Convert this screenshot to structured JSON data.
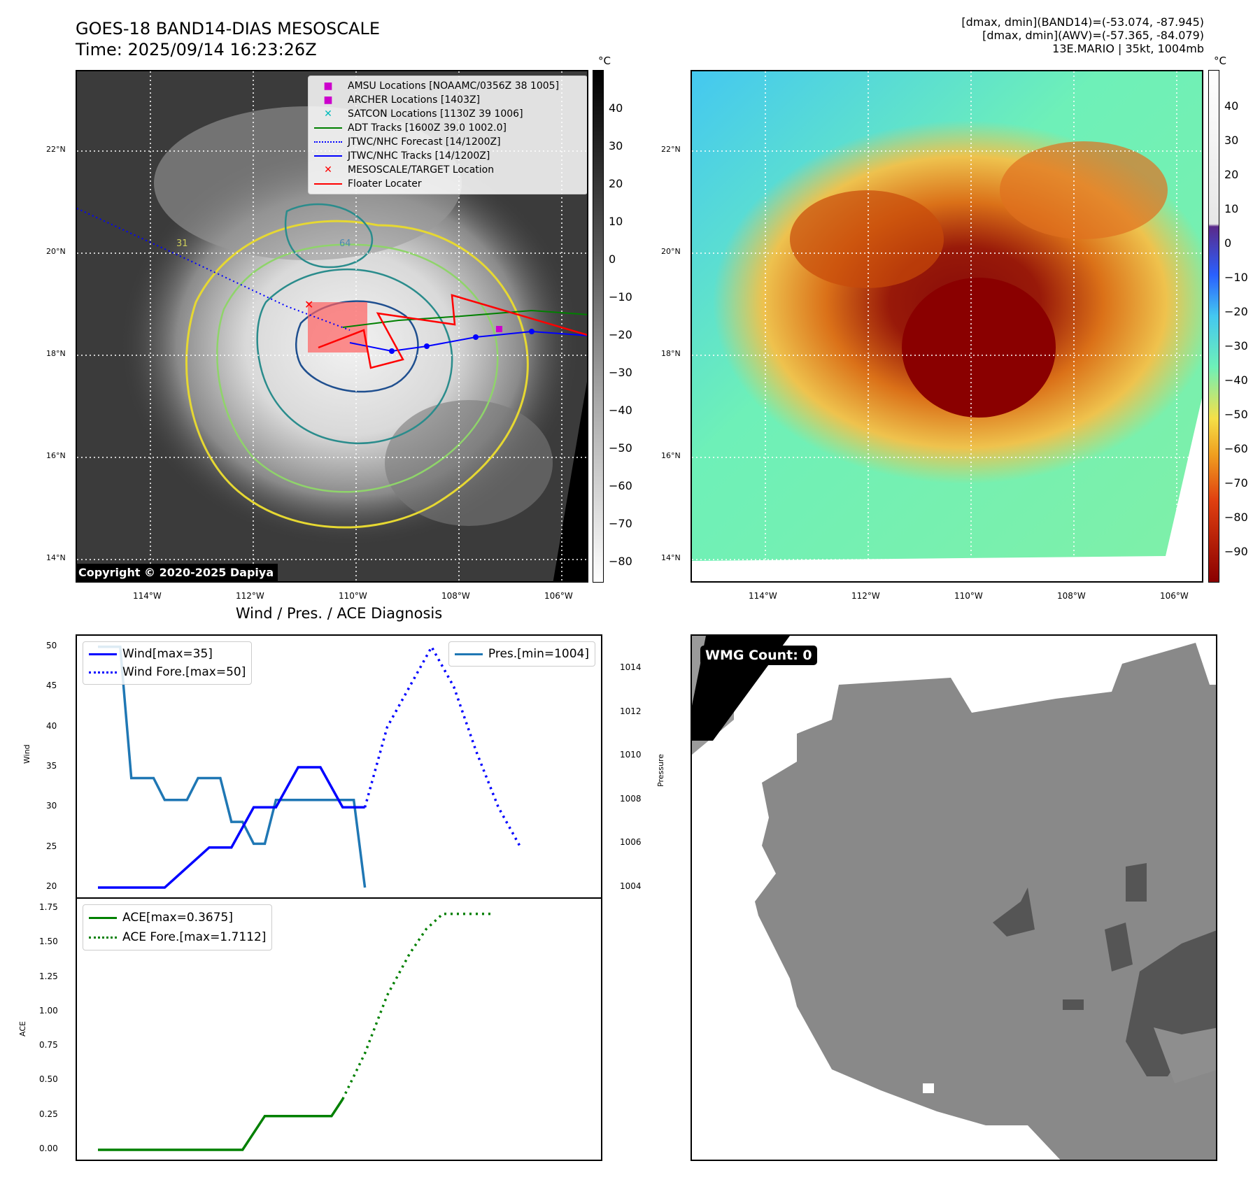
{
  "header": {
    "title_line1": "GOES-18 BAND14-DIAS MESOSCALE",
    "title_line2": "Time: 2025/09/14 16:23:26Z",
    "info_line1": "[dmax, dmin](BAND14)=(-53.074, -87.945)",
    "info_line2": "[dmax, dmin](AWV)=(-57.365, -84.079)",
    "info_line3": "13E.MARIO | 35kt, 1004mb"
  },
  "satellite_panel": {
    "copyright": "Copyright © 2020-2025 Dapiya",
    "colorbar_unit": "°C",
    "colorbar_ticks": [
      "40",
      "30",
      "20",
      "10",
      "0",
      "−10",
      "−20",
      "−30",
      "−40",
      "−50",
      "−60",
      "−70",
      "−80"
    ],
    "lat_ticks": [
      "22°N",
      "20°N",
      "18°N",
      "16°N",
      "14°N"
    ],
    "lon_ticks": [
      "114°W",
      "112°W",
      "110°W",
      "108°W",
      "106°W"
    ],
    "contour_labels": [
      "31",
      "64"
    ],
    "legend": [
      {
        "label": "AMSU Locations [NOAAMC/0356Z 38 1005]",
        "marker": "square",
        "color": "#cc00cc"
      },
      {
        "label": "ARCHER Locations [1403Z]",
        "marker": "square",
        "color": "#cc00cc"
      },
      {
        "label": "SATCON Locations [1130Z 39 1006]",
        "marker": "x",
        "color": "#00bbbb"
      },
      {
        "label": "ADT Tracks [1600Z 39.0 1002.0]",
        "marker": "line",
        "color": "#008000"
      },
      {
        "label": "JTWC/NHC Forecast [14/1200Z]",
        "marker": "dotted",
        "color": "#0000ff"
      },
      {
        "label": "JTWC/NHC Tracks [14/1200Z]",
        "marker": "line-dot",
        "color": "#0000ff"
      },
      {
        "label": "MESOSCALE/TARGET Location",
        "marker": "x",
        "color": "#ff0000"
      },
      {
        "label": "Floater Locater",
        "marker": "line",
        "color": "#ff0000"
      }
    ]
  },
  "awv_panel": {
    "colorbar_unit": "°C",
    "colorbar_ticks": [
      "40",
      "30",
      "20",
      "10",
      "0",
      "−10",
      "−20",
      "−30",
      "−40",
      "−50",
      "−60",
      "−70",
      "−80",
      "−90"
    ],
    "lat_ticks": [
      "22°N",
      "20°N",
      "18°N",
      "16°N",
      "14°N"
    ],
    "lon_ticks": [
      "114°W",
      "112°W",
      "110°W",
      "108°W",
      "106°W"
    ]
  },
  "wmg_panel": {
    "badge": "WMG Count: 0"
  },
  "chart_data": [
    {
      "type": "line",
      "title": "Wind / Pres. / ACE Diagnosis",
      "ylabel": "Wind",
      "ylabel_right": "Pressure",
      "ylim": [
        19.5,
        51.5
      ],
      "ylim_right": [
        1003.6,
        1015.3
      ],
      "y_ticks": [
        "50",
        "45",
        "40",
        "35",
        "30",
        "25",
        "20"
      ],
      "y_ticks_right": [
        "1014",
        "1012",
        "1010",
        "1008",
        "1006",
        "1004"
      ],
      "legend": [
        "Wind[max=35]",
        "Wind Fore.[max=50]",
        "Pres.[min=1004]"
      ],
      "series": [
        {
          "name": "Wind[max=35]",
          "color": "#0000ff",
          "style": "solid",
          "x": [
            0,
            6,
            10,
            12,
            14,
            16,
            18,
            20,
            22,
            24
          ],
          "values": [
            20,
            20,
            25,
            25,
            30,
            30,
            35,
            35,
            30,
            30
          ]
        },
        {
          "name": "Wind Fore.[max=50]",
          "color": "#0000ff",
          "style": "dotted",
          "x": [
            24,
            25,
            26,
            28,
            30,
            32,
            34,
            36,
            38
          ],
          "values": [
            30,
            35,
            40,
            45,
            50,
            45,
            37,
            30,
            25
          ]
        },
        {
          "name": "Pres.[min=1004]",
          "color": "#1f77b4",
          "style": "solid",
          "x": [
            0,
            2,
            3,
            5,
            6,
            8,
            9,
            11,
            12,
            13,
            14,
            15,
            16,
            17,
            18,
            20,
            22,
            23,
            24
          ],
          "values": [
            1015,
            1015,
            1009,
            1009,
            1008,
            1008,
            1009,
            1009,
            1007,
            1007,
            1006,
            1006,
            1008,
            1008,
            1008,
            1008,
            1008,
            1008,
            1004
          ]
        }
      ]
    },
    {
      "type": "line",
      "ylabel": "ACE",
      "ylim": [
        -0.09,
        1.8
      ],
      "y_ticks": [
        "1.75",
        "1.50",
        "1.25",
        "1.00",
        "0.75",
        "0.50",
        "0.25",
        "0.00"
      ],
      "legend": [
        "ACE[max=0.3675]",
        "ACE Fore.[max=1.7112]"
      ],
      "series": [
        {
          "name": "ACE[max=0.3675]",
          "color": "#008000",
          "style": "solid",
          "x": [
            0,
            13,
            15,
            21,
            22
          ],
          "values": [
            0,
            0,
            0.245,
            0.245,
            0.3675
          ]
        },
        {
          "name": "ACE Fore.[max=1.7112]",
          "color": "#008000",
          "style": "dotted",
          "x": [
            22,
            24,
            26,
            28,
            29.5,
            31,
            33,
            35,
            35.5
          ],
          "values": [
            0.3675,
            0.7,
            1.12,
            1.42,
            1.6,
            1.7112,
            1.7112,
            1.7112,
            1.7112
          ]
        }
      ]
    }
  ]
}
